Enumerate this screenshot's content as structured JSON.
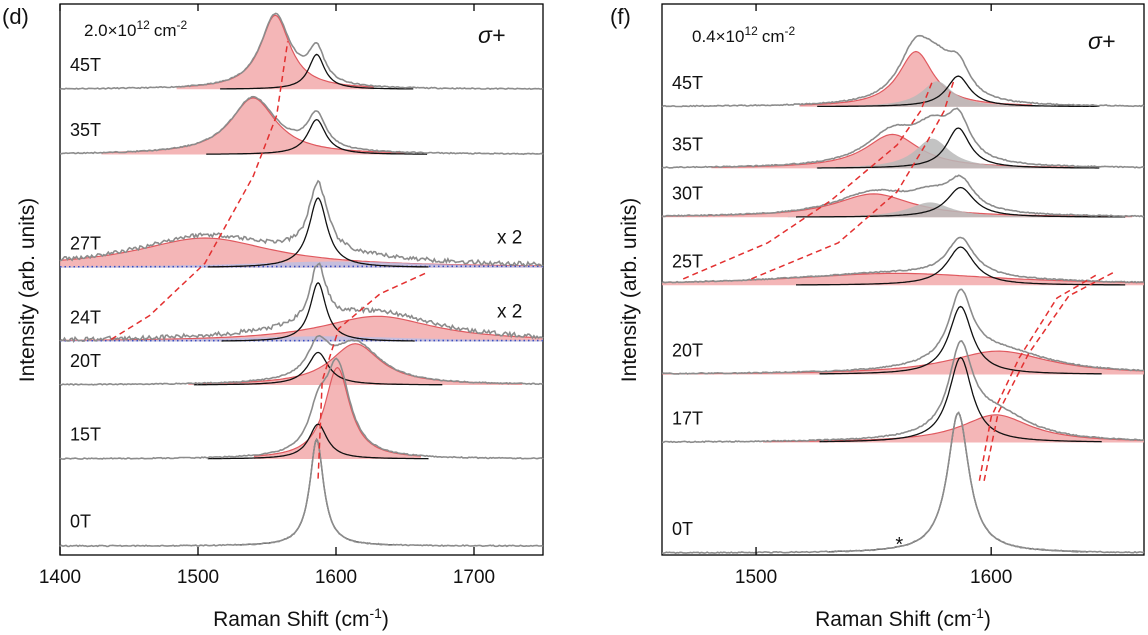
{
  "figure": {
    "accent_colors": {
      "raw_data": "#8c8c8c",
      "fit": "#111111",
      "red_peak": "#e0595f",
      "red_fill": "#f2a9aa",
      "gray_fill": "#b9b9b9",
      "blue_fill": "#b7c0ea",
      "blue_dots": "#3a4fc0",
      "guide": "#e33030"
    }
  },
  "chart_data": [
    {
      "type": "line",
      "panel": "(d)",
      "density_base": "2.0×10",
      "density_exp": "12",
      "density_unit": "cm",
      "density_unit_exp": "-2",
      "polarization": "σ+",
      "xlabel_main": "Raman Shift (cm",
      "xlabel_exp": "-1",
      "xlabel_tail": ")",
      "ylabel": "Intensity (arb. units)",
      "xlim": [
        1400,
        1750
      ],
      "xticks": [
        1400,
        1500,
        1600,
        1700
      ],
      "xtick_labels": [
        "1400",
        "1500",
        "1600",
        "1700"
      ],
      "grid": false,
      "spectra": [
        {
          "label": "45T",
          "offset": 10.5,
          "multiplier": "",
          "noise": 0.012,
          "peaks": [
            {
              "type": "fit",
              "center": 1586,
              "width": 7,
              "amp": 0.8
            },
            {
              "type": "red",
              "center": 1556,
              "width": 13,
              "amp": 1.7
            }
          ]
        },
        {
          "label": "35T",
          "offset": 9.0,
          "multiplier": "",
          "noise": 0.012,
          "peaks": [
            {
              "type": "fit",
              "center": 1586,
              "width": 8,
              "amp": 0.8
            },
            {
              "type": "red",
              "center": 1540,
              "width": 20,
              "amp": 1.3
            }
          ]
        },
        {
          "label": "27T",
          "offset": 6.4,
          "multiplier": "x 2",
          "noise": 0.05,
          "peaks": [
            {
              "type": "fit",
              "center": 1587,
              "width": 8,
              "amp": 1.6
            },
            {
              "type": "red",
              "center": 1505,
              "width": 60,
              "amp": 0.68
            },
            {
              "type": "blue",
              "center": 1600,
              "width": 85,
              "amp": 0.14
            }
          ]
        },
        {
          "label": "24T",
          "offset": 4.7,
          "multiplier": "x 2",
          "noise": 0.05,
          "peaks": [
            {
              "type": "fit",
              "center": 1587,
              "width": 7,
              "amp": 1.35
            },
            {
              "type": "red",
              "center": 1630,
              "width": 50,
              "amp": 0.58
            },
            {
              "type": "blue",
              "center": 1590,
              "width": 85,
              "amp": 0.12
            }
          ]
        },
        {
          "label": "20T",
          "offset": 3.7,
          "multiplier": "",
          "noise": 0.012,
          "peaks": [
            {
              "type": "fit",
              "center": 1587,
              "width": 9,
              "amp": 0.75
            },
            {
              "type": "red",
              "center": 1614,
              "width": 22,
              "amp": 0.95
            }
          ]
        },
        {
          "label": "15T",
          "offset": 2.0,
          "multiplier": "",
          "noise": 0.012,
          "peaks": [
            {
              "type": "fit",
              "center": 1587,
              "width": 8,
              "amp": 0.8
            },
            {
              "type": "red",
              "center": 1601,
              "width": 11,
              "amp": 2.1
            }
          ]
        },
        {
          "label": "0T",
          "offset": 0.0,
          "multiplier": "",
          "noise": 0.012,
          "peaks": [
            {
              "type": "fit",
              "center": 1586,
              "width": 6,
              "amp": 2.45
            }
          ]
        }
      ],
      "guides": [
        {
          "x": [
            1587,
            1590,
            1602,
            1632,
            1667
          ],
          "y": [
            1.55,
            3.8,
            5.0,
            5.8,
            6.3
          ]
        },
        {
          "x": [
            1437,
            1465,
            1505,
            1540,
            1557,
            1565
          ],
          "y": [
            4.75,
            5.3,
            6.5,
            8.5,
            9.9,
            11.6
          ]
        }
      ]
    },
    {
      "type": "line",
      "panel": "(f)",
      "density_base": "0.4×10",
      "density_exp": "12",
      "density_unit": "cm",
      "density_unit_exp": "-2",
      "polarization": "σ+",
      "xlabel_main": "Raman Shift (cm",
      "xlabel_exp": "-1",
      "xlabel_tail": ")",
      "ylabel": "Intensity (arb. units)",
      "xlim": [
        1460,
        1665
      ],
      "xticks": [
        1500,
        1600
      ],
      "xtick_labels": [
        "1500",
        "1600"
      ],
      "annotation": "*",
      "annotation_x": 1555,
      "annotation_y": 0.1,
      "grid": false,
      "spectra": [
        {
          "label": "45T",
          "offset": 10.5,
          "multiplier": "",
          "noise": 0.012,
          "peaks": [
            {
              "type": "fit",
              "center": 1586,
              "width": 6,
              "amp": 0.72
            },
            {
              "type": "red",
              "center": 1568,
              "width": 9,
              "amp": 1.3
            },
            {
              "type": "gray",
              "center": 1577,
              "width": 8,
              "amp": 0.6
            }
          ]
        },
        {
          "label": "35T",
          "offset": 9.05,
          "multiplier": "",
          "noise": 0.012,
          "peaks": [
            {
              "type": "fit",
              "center": 1586,
              "width": 6,
              "amp": 0.95
            },
            {
              "type": "red",
              "center": 1558,
              "width": 14,
              "amp": 0.8
            },
            {
              "type": "gray",
              "center": 1575,
              "width": 9,
              "amp": 0.7
            }
          ]
        },
        {
          "label": "30T",
          "offset": 7.9,
          "multiplier": "",
          "noise": 0.012,
          "peaks": [
            {
              "type": "fit",
              "center": 1587,
              "width": 7,
              "amp": 0.7
            },
            {
              "type": "red",
              "center": 1550,
              "width": 20,
              "amp": 0.55
            },
            {
              "type": "gray",
              "center": 1574,
              "width": 11,
              "amp": 0.35
            }
          ]
        },
        {
          "label": "25T",
          "offset": 6.3,
          "multiplier": "",
          "noise": 0.012,
          "peaks": [
            {
              "type": "fit",
              "center": 1587,
              "width": 7,
              "amp": 0.9
            },
            {
              "type": "red",
              "center": 1560,
              "width": 55,
              "amp": 0.28
            }
          ]
        },
        {
          "label": "20T",
          "offset": 4.2,
          "multiplier": "",
          "noise": 0.012,
          "peaks": [
            {
              "type": "fit",
              "center": 1587,
              "width": 6,
              "amp": 1.6
            },
            {
              "type": "red",
              "center": 1603,
              "width": 26,
              "amp": 0.55
            }
          ]
        },
        {
          "label": "17T",
          "offset": 2.6,
          "multiplier": "",
          "noise": 0.012,
          "peaks": [
            {
              "type": "fit",
              "center": 1587,
              "width": 6,
              "amp": 2.0
            },
            {
              "type": "red",
              "center": 1602,
              "width": 18,
              "amp": 0.65
            }
          ]
        },
        {
          "label": "0T",
          "offset": 0.0,
          "multiplier": "",
          "noise": 0.012,
          "peaks": [
            {
              "type": "fit",
              "center": 1586,
              "width": 5.5,
              "amp": 3.3
            }
          ]
        }
      ],
      "guides": [
        {
          "x": [
            1595,
            1600,
            1612,
            1628,
            1645
          ],
          "y": [
            1.7,
            3.2,
            4.6,
            6.0,
            6.55
          ]
        },
        {
          "x": [
            1597,
            1603,
            1616,
            1633,
            1652
          ],
          "y": [
            1.7,
            3.3,
            4.7,
            6.05,
            6.6
          ]
        },
        {
          "x": [
            1469,
            1505,
            1532,
            1560,
            1570,
            1575
          ],
          "y": [
            6.45,
            7.3,
            8.3,
            9.6,
            10.4,
            11.1
          ]
        },
        {
          "x": [
            1498,
            1535,
            1560,
            1572,
            1580,
            1584
          ],
          "y": [
            6.45,
            7.3,
            8.5,
            9.6,
            10.4,
            11.1
          ]
        }
      ]
    }
  ]
}
